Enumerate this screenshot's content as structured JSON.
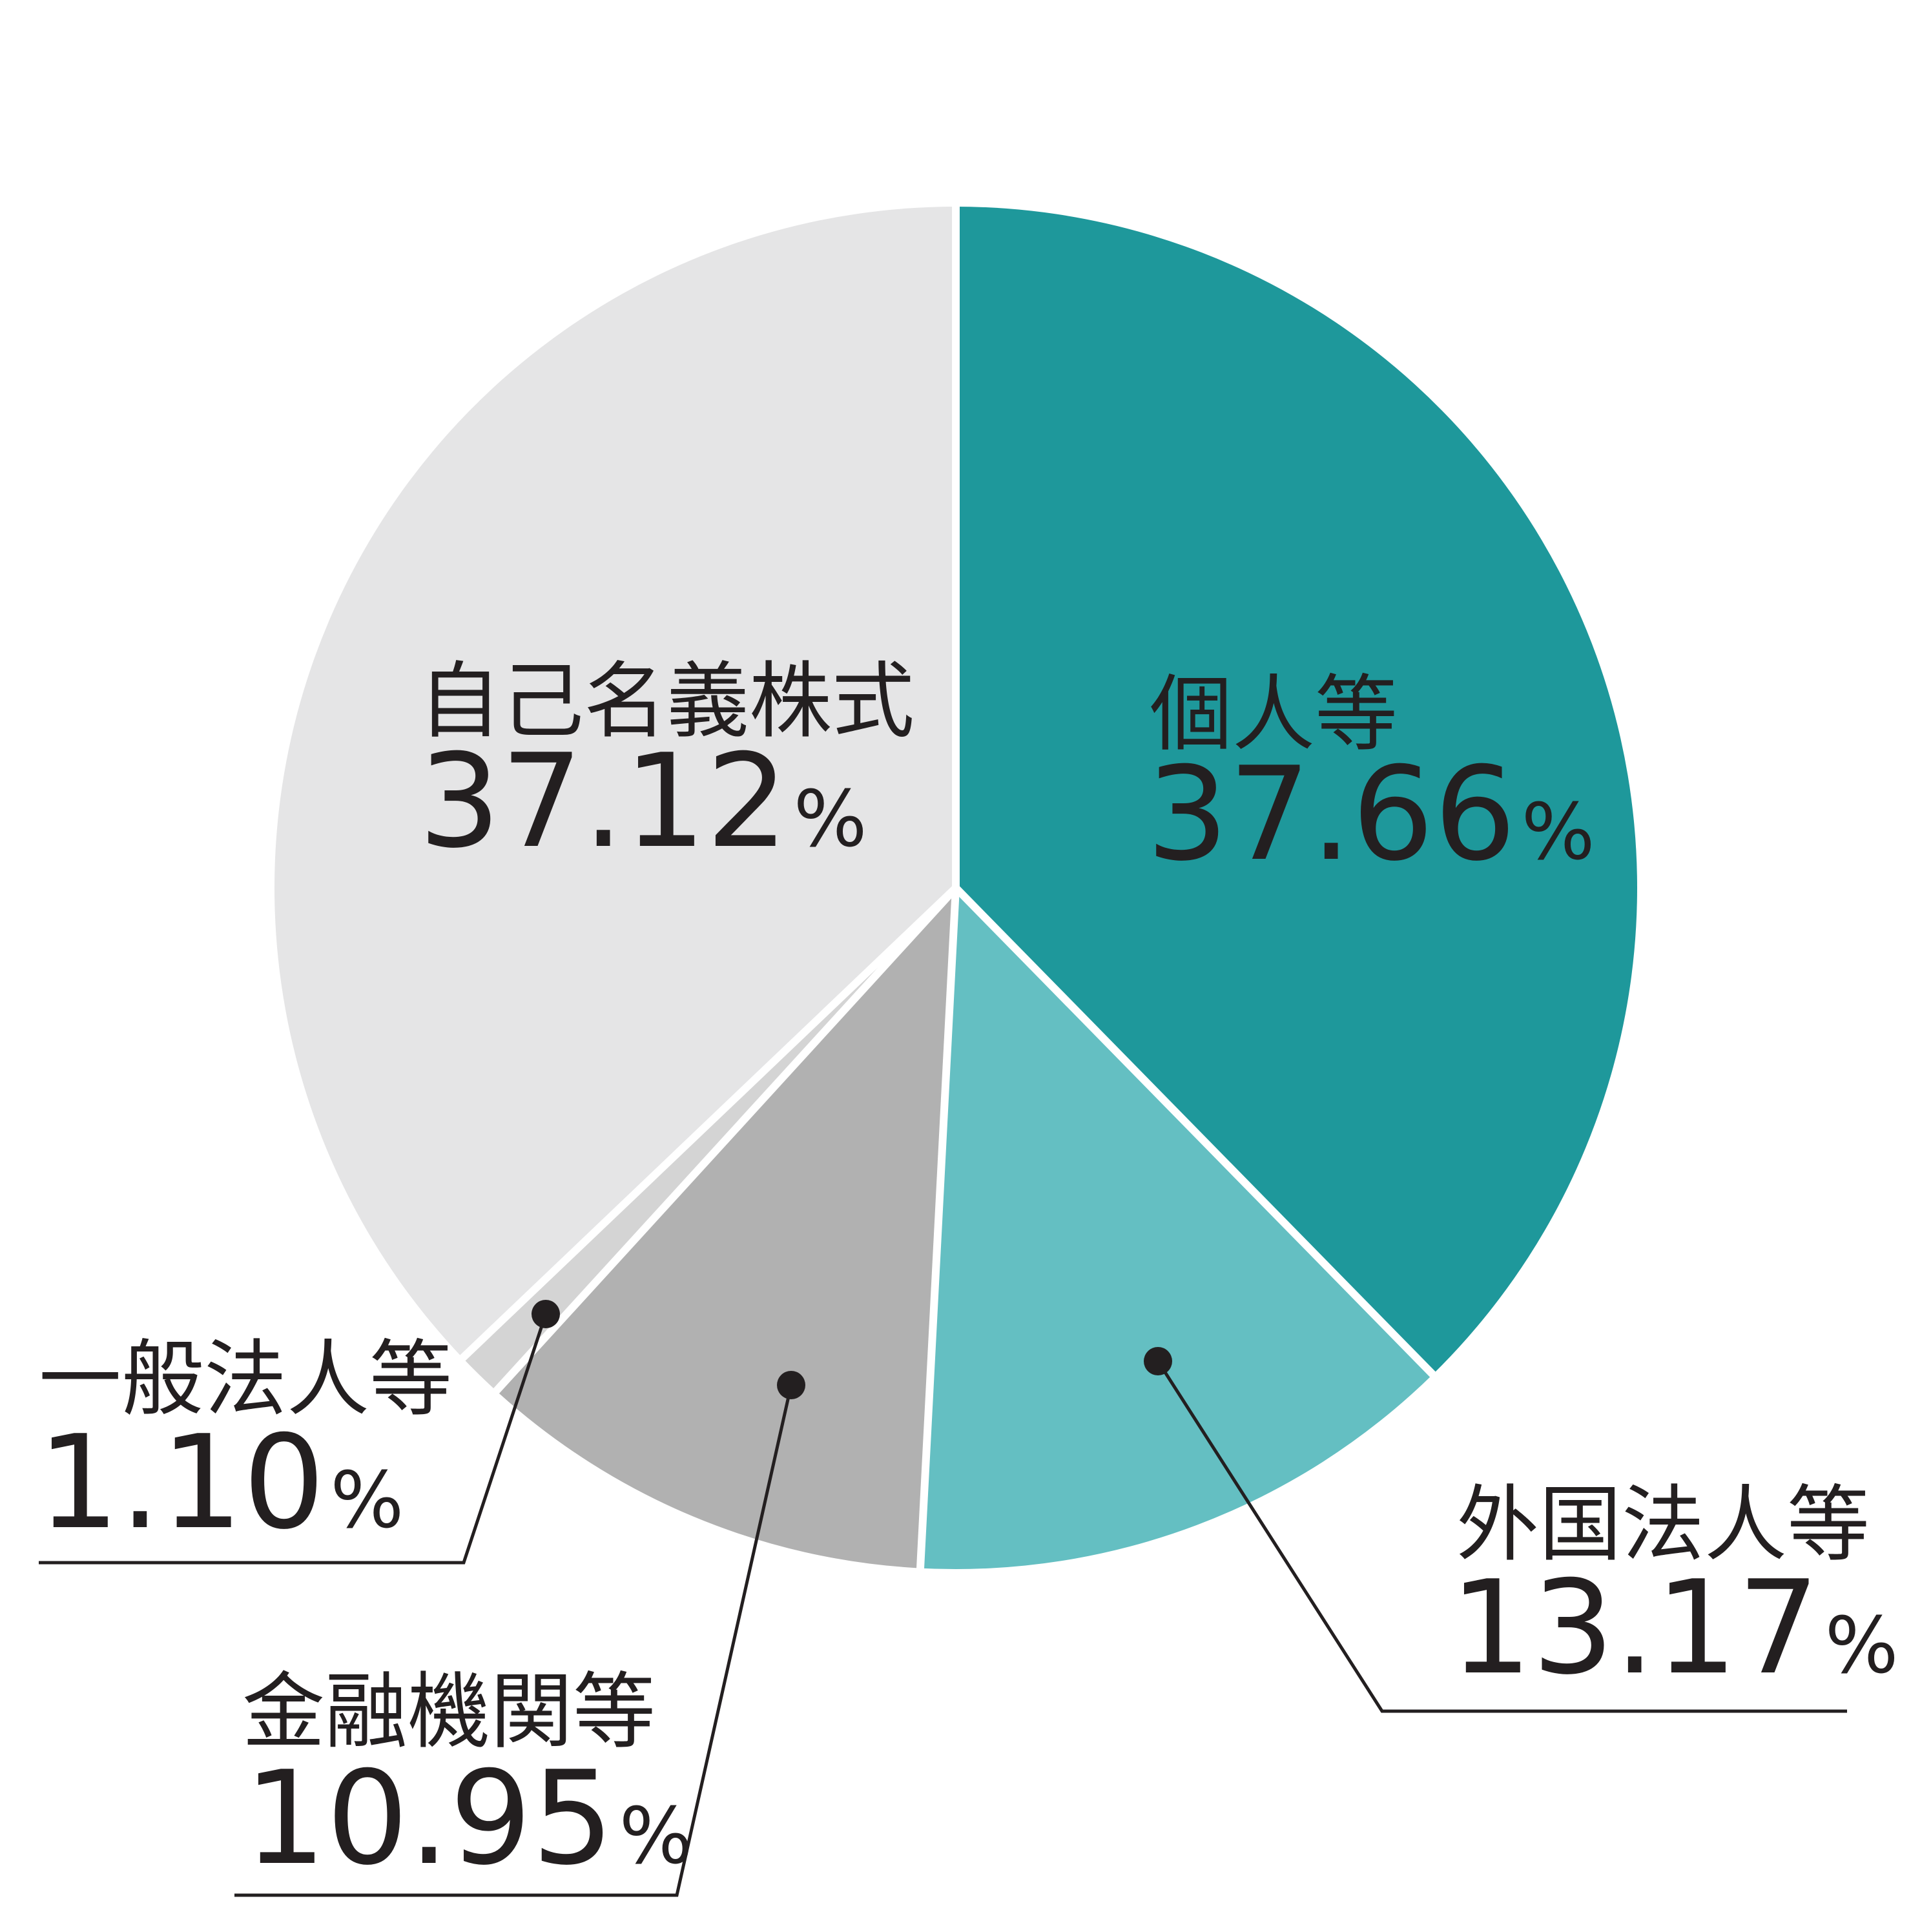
{
  "chart_data": {
    "type": "pie",
    "unit": "%",
    "slices": [
      {
        "name": "個人等",
        "value": 37.66,
        "value_label": "37.66",
        "color": "#1e989b"
      },
      {
        "name": "外国法人等",
        "value": 13.17,
        "value_label": "13.17",
        "color": "#64bfc2"
      },
      {
        "name": "金融機関等",
        "value": 10.95,
        "value_label": "10.95",
        "color": "#b1b1b1"
      },
      {
        "name": "一般法人等",
        "value": 1.1,
        "value_label": "1.10",
        "color": "#d4d4d4"
      },
      {
        "name": "自己名義株式",
        "value": 37.12,
        "value_label": "37.12",
        "color": "#e5e5e6"
      }
    ],
    "start": "12 o'clock",
    "direction": "clockwise",
    "separator_color": "#ffffff",
    "text_color": "#231f20"
  }
}
